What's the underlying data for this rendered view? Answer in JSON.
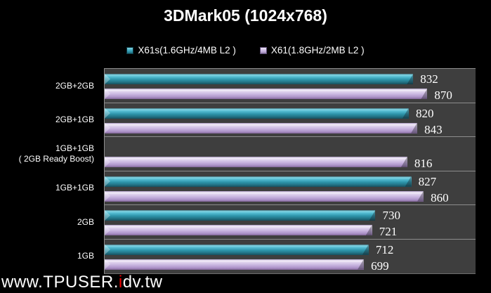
{
  "title": "3DMark05 (1024x768)",
  "legend": [
    {
      "label": "X61s(1.6GHz/4MB L2 )",
      "swatch": "teal",
      "color": "#2e95ab"
    },
    {
      "label": "X61(1.8GHz/2MB L2 )",
      "swatch": "purple",
      "color": "#c5b0dd"
    }
  ],
  "watermark": {
    "prefix": "www.TPUSER.",
    "highlight": "i",
    "suffix": "dv.tw"
  },
  "colors": {
    "background": "#000000",
    "plot_background": "#3e3e3e",
    "separator": "#8d8d8d",
    "text": "#ffffff",
    "teal_bar": "#2e95ab",
    "purple_bar": "#c5b0dd",
    "watermark_accent": "#ee0000"
  },
  "chart_data": {
    "type": "bar",
    "orientation": "horizontal",
    "title": "3DMark05 (1024x768)",
    "categories": [
      "2GB+2GB",
      "2GB+1GB",
      "1GB+1GB ( 2GB Ready Boost)",
      "1GB+1GB",
      "2GB",
      "1GB"
    ],
    "category_lines": [
      [
        "2GB+2GB"
      ],
      [
        "2GB+1GB"
      ],
      [
        "1GB+1GB",
        "( 2GB Ready Boost)"
      ],
      [
        "1GB+1GB"
      ],
      [
        "2GB"
      ],
      [
        "1GB"
      ]
    ],
    "series": [
      {
        "name": "X61s(1.6GHz/4MB L2 )",
        "color": "#2e95ab",
        "values": [
          832,
          820,
          null,
          827,
          730,
          712
        ]
      },
      {
        "name": "X61(1.8GHz/2MB L2 )",
        "color": "#c5b0dd",
        "values": [
          870,
          843,
          816,
          860,
          721,
          699
        ]
      }
    ],
    "xlim": [
      0,
      1000
    ],
    "value_labels": true,
    "legend_position": "top",
    "grid": "horizontal-row-separators"
  }
}
